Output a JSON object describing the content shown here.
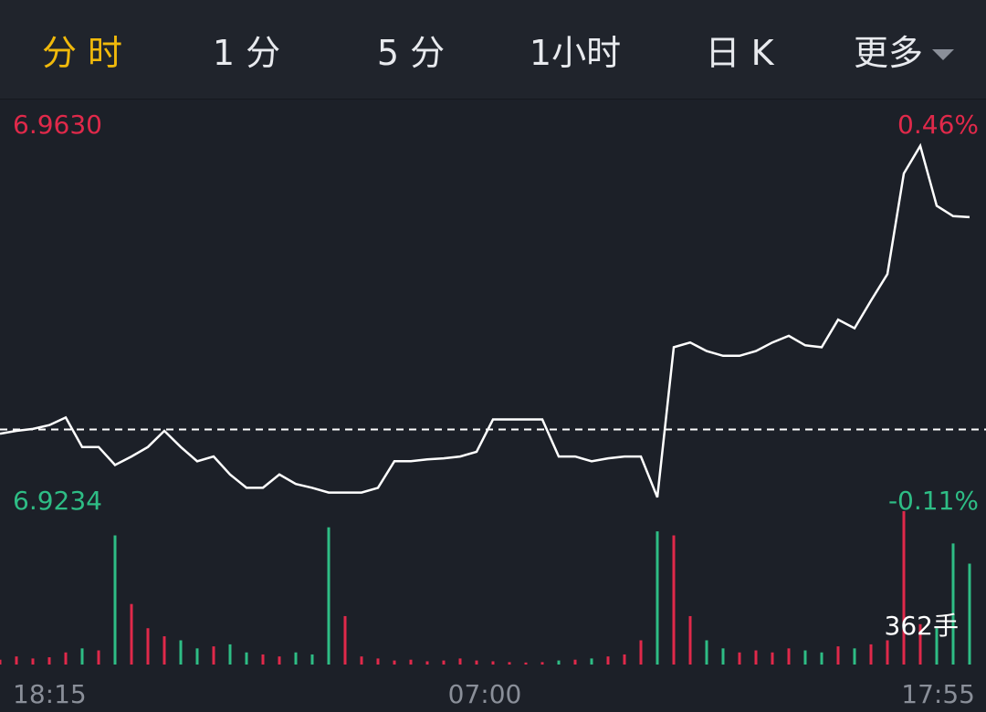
{
  "tabs": [
    {
      "label": "分 时",
      "active": true
    },
    {
      "label": "1 分",
      "active": false
    },
    {
      "label": "5 分",
      "active": false
    },
    {
      "label": "1小时",
      "active": false
    },
    {
      "label": "日 K",
      "active": false
    },
    {
      "label": "更多",
      "active": false
    }
  ],
  "chart_data": {
    "type": "line",
    "color": "#ffffff",
    "values": [
      6.9306,
      6.9309,
      6.9311,
      6.9315,
      6.9323,
      6.9292,
      6.9292,
      6.9273,
      6.9282,
      6.9292,
      6.9309,
      6.9292,
      6.9277,
      6.9282,
      6.9263,
      6.9249,
      6.9249,
      6.9263,
      6.9253,
      6.9249,
      6.9244,
      6.9244,
      6.9244,
      6.9249,
      6.9277,
      6.9277,
      6.9279,
      6.928,
      6.9282,
      6.9287,
      6.9321,
      6.9321,
      6.9321,
      6.9321,
      6.9282,
      6.9282,
      6.9277,
      6.928,
      6.9282,
      6.9282,
      6.9239,
      6.9397,
      6.9402,
      6.9393,
      6.9388,
      6.9388,
      6.9393,
      6.9402,
      6.9409,
      6.9399,
      6.9397,
      6.9426,
      6.9417,
      6.9446,
      6.9474,
      6.958,
      6.9609,
      6.9546,
      6.9535,
      6.9534
    ],
    "xlim": [
      0,
      59
    ],
    "xticks": [
      {
        "value": 0,
        "label": "18:15"
      },
      {
        "value": 29.5,
        "label": "07:00"
      },
      {
        "value": 59,
        "label": "17:55"
      }
    ],
    "ylim": [
      6.9234,
      6.963
    ],
    "yticks": [
      {
        "value": 6.963,
        "label": "6.9630"
      },
      {
        "value": 6.9234,
        "label": "6.9234"
      }
    ],
    "y2lim": [
      -0.11,
      0.46
    ],
    "y2ticks": [
      {
        "value": 0.46,
        "label": "0.46%"
      },
      {
        "value": -0.11,
        "label": "-0.11%"
      }
    ],
    "reference_line": {
      "axis": "y2",
      "value": 0,
      "color": "#ffffff"
    },
    "volume": {
      "label": "362手",
      "up_color": "#e0294a",
      "down_color": "#2ebd85",
      "values": [
        12,
        20,
        15,
        18,
        30,
        40,
        35,
        320,
        150,
        90,
        70,
        60,
        40,
        45,
        50,
        30,
        25,
        20,
        30,
        25,
        340,
        120,
        20,
        15,
        10,
        12,
        8,
        10,
        15,
        10,
        8,
        6,
        5,
        6,
        10,
        12,
        15,
        20,
        25,
        60,
        330,
        320,
        120,
        60,
        40,
        30,
        35,
        30,
        40,
        35,
        30,
        45,
        40,
        50,
        60,
        380,
        100,
        90,
        300,
        250
      ]
    }
  }
}
